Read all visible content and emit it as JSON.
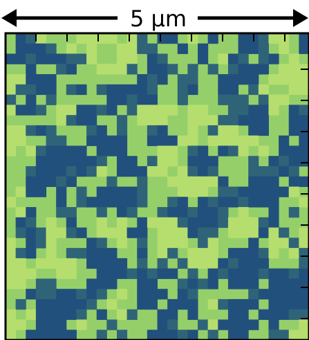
{
  "scale_bar": {
    "label": "5 µm"
  }
}
